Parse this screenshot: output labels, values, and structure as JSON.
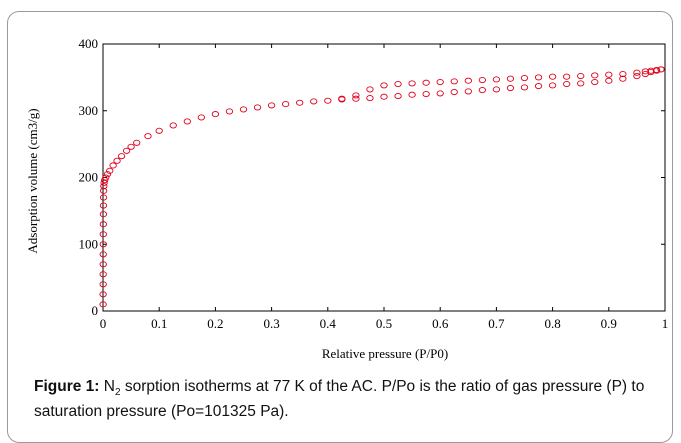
{
  "chart_data": {
    "type": "scatter",
    "xlabel": "Relative pressure (P/P0)",
    "ylabel": "Adsorption volume (cm3/g)",
    "xlim": [
      0,
      1
    ],
    "ylim": [
      0,
      400
    ],
    "xticks": [
      "0",
      "0.1",
      "0.2",
      "0.3",
      "0.4",
      "0.5",
      "0.6",
      "0.7",
      "0.8",
      "0.9",
      "1"
    ],
    "yticks": [
      "0",
      "100",
      "200",
      "300",
      "400"
    ],
    "grid": false,
    "marker_color": "#e0001a",
    "series": [
      {
        "points": [
          [
            0.0002,
            10
          ],
          [
            0.0002,
            25
          ],
          [
            0.0003,
            40
          ],
          [
            0.0003,
            55
          ],
          [
            0.0004,
            70
          ],
          [
            0.0004,
            85
          ],
          [
            0.0005,
            100
          ],
          [
            0.0005,
            115
          ],
          [
            0.0006,
            130
          ],
          [
            0.0007,
            145
          ],
          [
            0.0008,
            158
          ],
          [
            0.001,
            170
          ],
          [
            0.0012,
            180
          ],
          [
            0.0015,
            187
          ],
          [
            0.002,
            192
          ],
          [
            0.003,
            196
          ],
          [
            0.005,
            200
          ],
          [
            0.008,
            205
          ],
          [
            0.012,
            210
          ],
          [
            0.018,
            218
          ],
          [
            0.025,
            225
          ],
          [
            0.033,
            232
          ],
          [
            0.042,
            240
          ],
          [
            0.05,
            246
          ],
          [
            0.06,
            252
          ],
          [
            0.08,
            262
          ],
          [
            0.1,
            270
          ],
          [
            0.125,
            278
          ],
          [
            0.15,
            284
          ],
          [
            0.175,
            290
          ],
          [
            0.2,
            295
          ],
          [
            0.225,
            299
          ],
          [
            0.25,
            302
          ],
          [
            0.275,
            305
          ],
          [
            0.3,
            308
          ],
          [
            0.325,
            310
          ],
          [
            0.35,
            312
          ],
          [
            0.375,
            314
          ],
          [
            0.4,
            315
          ],
          [
            0.425,
            317
          ],
          [
            0.45,
            318
          ],
          [
            0.475,
            319
          ],
          [
            0.5,
            321
          ],
          [
            0.525,
            322
          ],
          [
            0.55,
            324
          ],
          [
            0.575,
            325
          ],
          [
            0.6,
            326
          ],
          [
            0.625,
            328
          ],
          [
            0.65,
            329
          ],
          [
            0.675,
            331
          ],
          [
            0.7,
            332
          ],
          [
            0.725,
            334
          ],
          [
            0.75,
            335
          ],
          [
            0.775,
            337
          ],
          [
            0.8,
            338
          ],
          [
            0.825,
            340
          ],
          [
            0.85,
            341
          ],
          [
            0.875,
            343
          ],
          [
            0.9,
            345
          ],
          [
            0.925,
            348
          ],
          [
            0.95,
            352
          ],
          [
            0.965,
            355
          ],
          [
            0.975,
            358
          ],
          [
            0.985,
            360
          ],
          [
            0.993,
            362
          ]
        ]
      },
      {
        "points": [
          [
            0.993,
            362
          ],
          [
            0.985,
            361
          ],
          [
            0.975,
            360
          ],
          [
            0.965,
            359
          ],
          [
            0.95,
            357
          ],
          [
            0.925,
            355
          ],
          [
            0.9,
            354
          ],
          [
            0.875,
            353
          ],
          [
            0.85,
            352
          ],
          [
            0.825,
            351
          ],
          [
            0.8,
            351
          ],
          [
            0.775,
            350
          ],
          [
            0.75,
            349
          ],
          [
            0.725,
            348
          ],
          [
            0.7,
            347
          ],
          [
            0.675,
            346
          ],
          [
            0.65,
            345
          ],
          [
            0.625,
            344
          ],
          [
            0.6,
            343
          ],
          [
            0.575,
            342
          ],
          [
            0.55,
            341
          ],
          [
            0.525,
            340
          ],
          [
            0.5,
            338
          ],
          [
            0.475,
            332
          ],
          [
            0.45,
            323
          ],
          [
            0.425,
            318
          ]
        ]
      }
    ]
  },
  "caption": {
    "label": "Figure 1:",
    "text_pre": " N",
    "subscript": "2",
    "text_post": " sorption isotherms at 77 K of the AC. P/Po is the ratio of gas pressure (P) to saturation pressure (Po=101325 Pa)."
  }
}
